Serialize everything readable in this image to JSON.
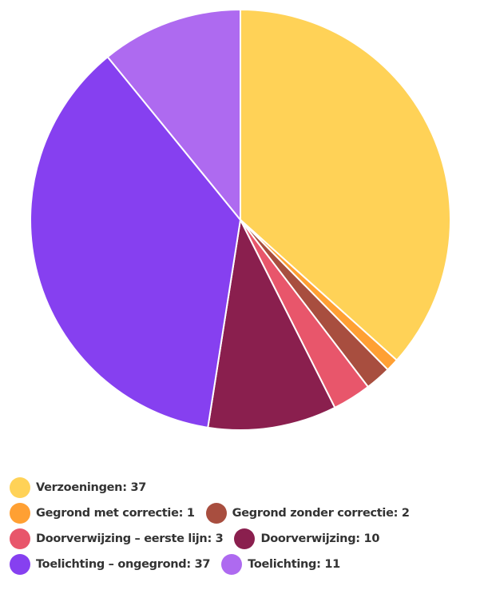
{
  "chart_data": {
    "type": "pie",
    "values": [
      37,
      1,
      2,
      3,
      10,
      37,
      11
    ],
    "value_labels": [
      "Verzoeningen: 37",
      "Gegrond met correctie: 1",
      "Gegrond zonder correctie: 2",
      "Doorverwijzing – eerste lijn: 3",
      "Doorverwijzing: 10",
      "Toelichting – ongegrond: 37",
      "Toelichting: 11"
    ],
    "colors": [
      "#ffd257",
      "#ffa033",
      "#a84e3f",
      "#e8566b",
      "#8a1f4e",
      "#8640f0",
      "#ae6af0"
    ]
  }
}
